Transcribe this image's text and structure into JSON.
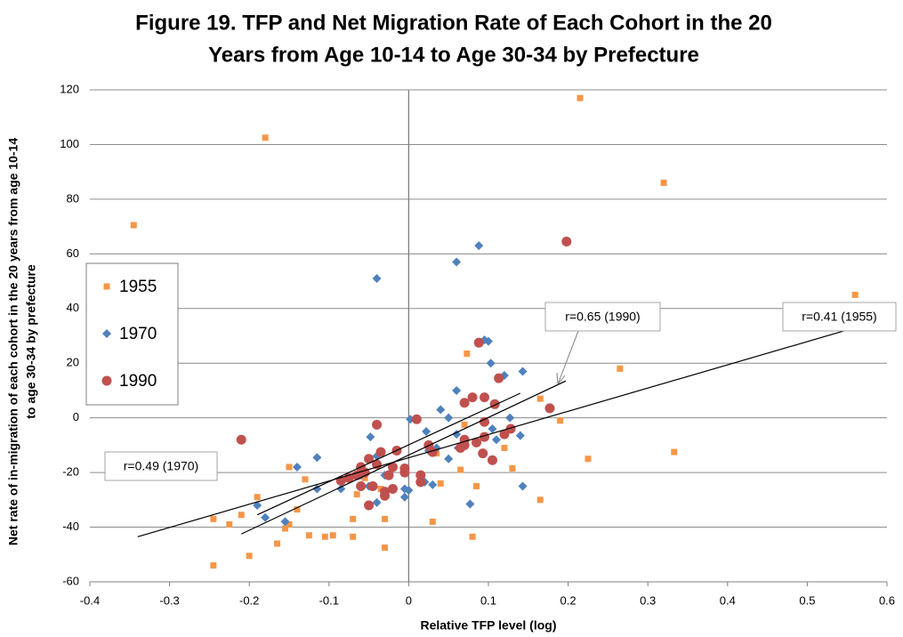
{
  "chart_data": {
    "type": "scatter",
    "title": [
      "Figure 19. TFP and Net Migration Rate of Each Cohort in the 20",
      "Years from Age 10-14 to Age 30-34 by Prefecture"
    ],
    "x_label": "Relative TFP level (log)",
    "y_label": [
      "Net rate of in-migration of each cohort in the 20 years from age 10-14",
      "to age 30-34 by prefecture"
    ],
    "xlim": [
      -0.4,
      0.6
    ],
    "xticks": [
      -0.4,
      -0.3,
      -0.2,
      -0.1,
      0,
      0.1,
      0.2,
      0.3,
      0.4,
      0.5,
      0.6
    ],
    "ylim": [
      -60,
      120
    ],
    "yticks": [
      -60,
      -40,
      -20,
      0,
      20,
      40,
      60,
      80,
      100,
      120
    ],
    "grid": true,
    "series": [
      {
        "name": "1955",
        "color": "#f79646",
        "marker": "square",
        "x": [
          -0.345,
          -0.18,
          0.215,
          0.32,
          0.56,
          0.265,
          0.073,
          0.165,
          0.19,
          0.225,
          0.333,
          0.13,
          0.12,
          0.085,
          0.08,
          0.165,
          0.03,
          0.04,
          0.065,
          0.07,
          0.035,
          -0.03,
          -0.03,
          -0.07,
          -0.07,
          -0.095,
          -0.105,
          -0.125,
          -0.14,
          -0.15,
          -0.155,
          -0.165,
          -0.15,
          -0.13,
          -0.19,
          -0.21,
          -0.225,
          -0.245,
          -0.2,
          -0.245,
          -0.065,
          -0.055,
          -0.035,
          -0.005
        ],
        "values": [
          70.5,
          102.5,
          117,
          86,
          45,
          18,
          23.5,
          7,
          -1,
          -15,
          -12.5,
          -18.5,
          -11,
          -25,
          -43.5,
          -30,
          -38,
          -24,
          -19,
          -2.5,
          -13,
          -37,
          -47.5,
          -37,
          -43.5,
          -43,
          -43.5,
          -43,
          -33.5,
          -39,
          -40.5,
          -46,
          -18,
          -22.5,
          -29,
          -35.5,
          -39,
          -37,
          -50.5,
          -54,
          -28,
          -22,
          -26,
          -19
        ],
        "trend_x": [
          -0.34,
          0.56
        ],
        "trend_y": [
          -43.5,
          33
        ]
      },
      {
        "name": "1970",
        "color": "#4f81bd",
        "marker": "diamond",
        "x": [
          -0.04,
          0.06,
          0.088,
          0.095,
          0.1,
          0.103,
          0.12,
          0.143,
          0.06,
          0.04,
          0.002,
          0.05,
          0.062,
          0.06,
          0.105,
          0.127,
          0.14,
          0.11,
          0.143,
          0.077,
          0.05,
          0.022,
          0.03,
          0.02,
          0.025,
          0.035,
          -0.005,
          -0.005,
          0.0,
          -0.03,
          -0.04,
          -0.048,
          -0.06,
          -0.04,
          -0.05,
          -0.085,
          -0.115,
          -0.115,
          -0.14,
          -0.155,
          -0.18,
          -0.19
        ],
        "values": [
          51,
          57,
          63,
          28.5,
          28,
          20,
          15.5,
          17,
          10,
          3,
          -0.5,
          0,
          -11,
          -6,
          -4,
          0,
          -6.5,
          -8,
          -25,
          -31.5,
          -15,
          -5,
          -24.5,
          -23.5,
          -12,
          -11,
          -26,
          -29,
          -26.5,
          -21,
          -14,
          -7,
          -21,
          -31,
          -25,
          -26,
          -14.5,
          -26,
          -18,
          -38,
          -36.5,
          -32
        ],
        "trend_x": [
          -0.19,
          0.14
        ],
        "trend_y": [
          -35.5,
          9
        ]
      },
      {
        "name": "1990",
        "color": "#c0504d",
        "marker": "circle",
        "x": [
          0.198,
          0.088,
          0.113,
          0.08,
          0.07,
          0.095,
          0.108,
          0.177,
          -0.04,
          0.01,
          0.095,
          0.128,
          0.12,
          0.07,
          0.07,
          0.085,
          0.095,
          0.093,
          0.105,
          0.03,
          0.025,
          0.065,
          0.015,
          0.015,
          -0.015,
          -0.02,
          -0.005,
          -0.005,
          -0.025,
          -0.035,
          -0.03,
          -0.03,
          -0.02,
          -0.04,
          -0.05,
          -0.045,
          -0.06,
          -0.055,
          -0.06,
          -0.05,
          -0.075,
          -0.065,
          -0.085,
          -0.21
        ],
        "values": [
          64.5,
          27.5,
          14.5,
          7.5,
          5.5,
          7.5,
          5,
          3.5,
          -2.5,
          -0.5,
          -1.5,
          -4,
          -6,
          -8,
          -10,
          -9,
          -7,
          -13,
          -15.5,
          -12.5,
          -10,
          -11,
          -21,
          -23.5,
          -12,
          -18,
          -18.5,
          -20,
          -21,
          -12.5,
          -27,
          -28.5,
          -26,
          -17,
          -15,
          -25,
          -18,
          -20,
          -25,
          -32,
          -22,
          -21,
          -23,
          -8
        ],
        "trend_x": [
          -0.21,
          0.197
        ],
        "trend_y": [
          -42.5,
          13.5
        ]
      }
    ],
    "annotations": [
      "r=0.49 (1970)",
      "r=0.65 (1990)",
      "r=0.41 (1955)"
    ]
  }
}
